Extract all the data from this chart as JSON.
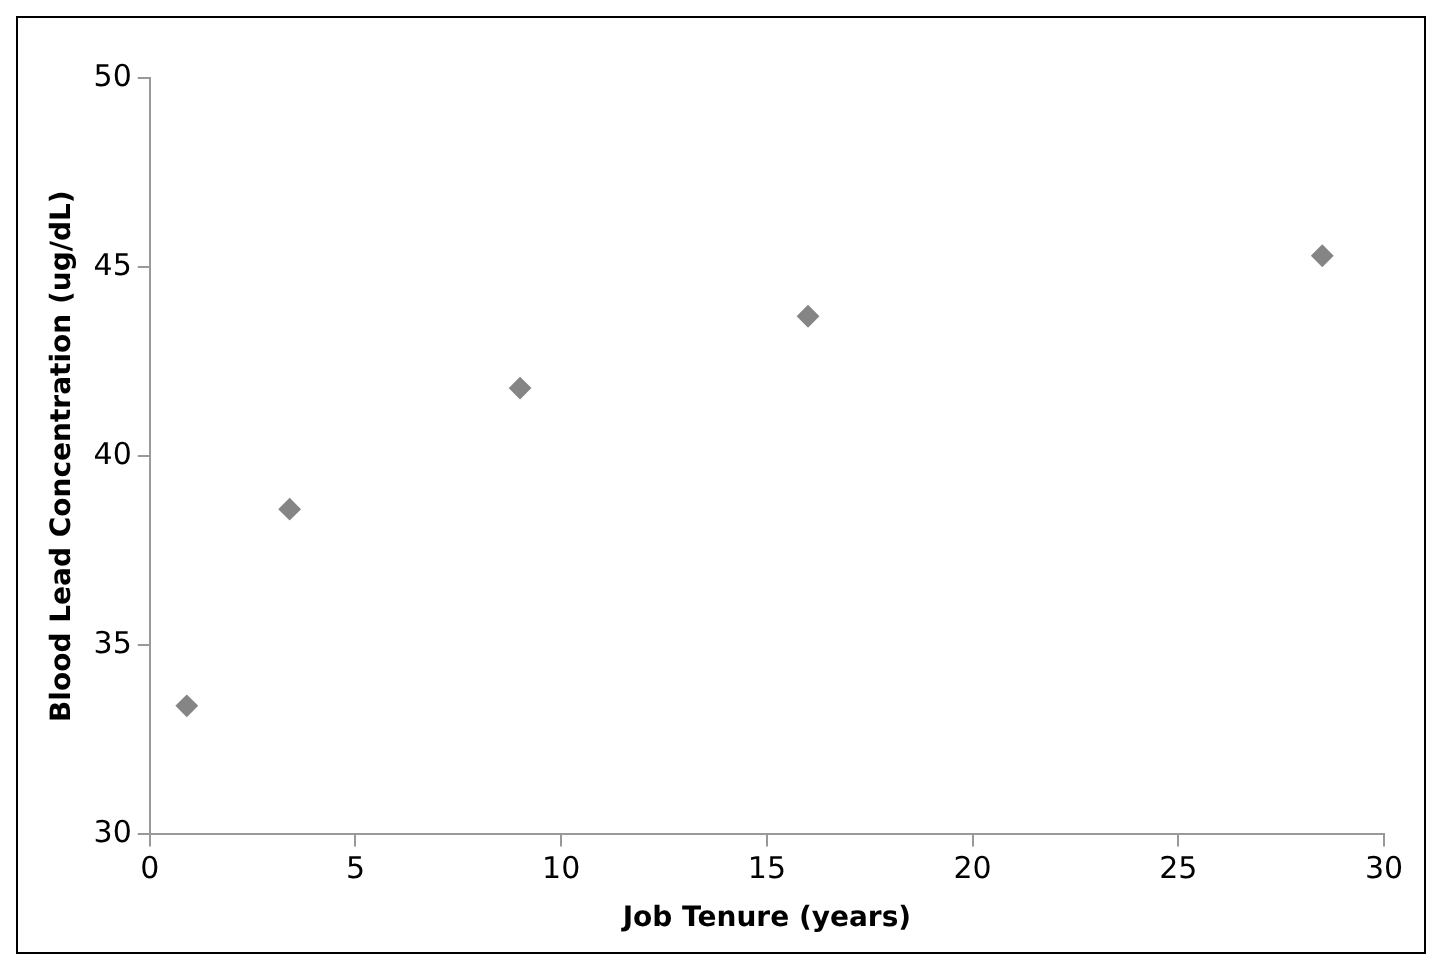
{
  "chart_data": {
    "type": "scatter",
    "xlabel": "Job Tenure (years)",
    "ylabel": "Blood Lead Concentration (ug/dL)",
    "x": [
      0.9,
      3.4,
      9.0,
      16.0,
      28.5
    ],
    "series": [
      {
        "color": "#858585",
        "values": [
          33.4,
          38.6,
          41.8,
          43.7,
          45.3
        ]
      }
    ],
    "xlim": [
      0,
      30
    ],
    "xticks": [
      0,
      5,
      10,
      15,
      20,
      25,
      30
    ],
    "ylim": [
      30,
      50
    ],
    "yticks": [
      30,
      35,
      40,
      45,
      50
    ],
    "grid": false,
    "legend": false,
    "marker": "diamond"
  }
}
